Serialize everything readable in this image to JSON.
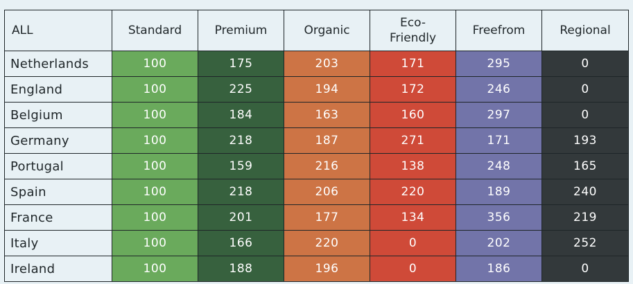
{
  "chart_data": {
    "type": "table",
    "corner_label": "ALL",
    "columns": [
      "Standard",
      "Premium",
      "Organic",
      "Eco-Friendly",
      "Freefrom",
      "Regional"
    ],
    "column_colors": [
      "#6aaa5c",
      "#37613e",
      "#cd7445",
      "#cf4a38",
      "#7274a9",
      "#33393b"
    ],
    "rows": [
      {
        "label": "Netherlands",
        "values": [
          100,
          175,
          203,
          171,
          295,
          0
        ]
      },
      {
        "label": "England",
        "values": [
          100,
          225,
          194,
          172,
          246,
          0
        ]
      },
      {
        "label": "Belgium",
        "values": [
          100,
          184,
          163,
          160,
          297,
          0
        ]
      },
      {
        "label": "Germany",
        "values": [
          100,
          218,
          187,
          271,
          171,
          193
        ]
      },
      {
        "label": "Portugal",
        "values": [
          100,
          159,
          216,
          138,
          248,
          165
        ]
      },
      {
        "label": "Spain",
        "values": [
          100,
          218,
          206,
          220,
          189,
          240
        ]
      },
      {
        "label": "France",
        "values": [
          100,
          201,
          177,
          134,
          356,
          219
        ]
      },
      {
        "label": "Italy",
        "values": [
          100,
          166,
          220,
          0,
          202,
          252
        ]
      },
      {
        "label": "Ireland",
        "values": [
          100,
          188,
          196,
          0,
          186,
          0
        ]
      }
    ]
  }
}
